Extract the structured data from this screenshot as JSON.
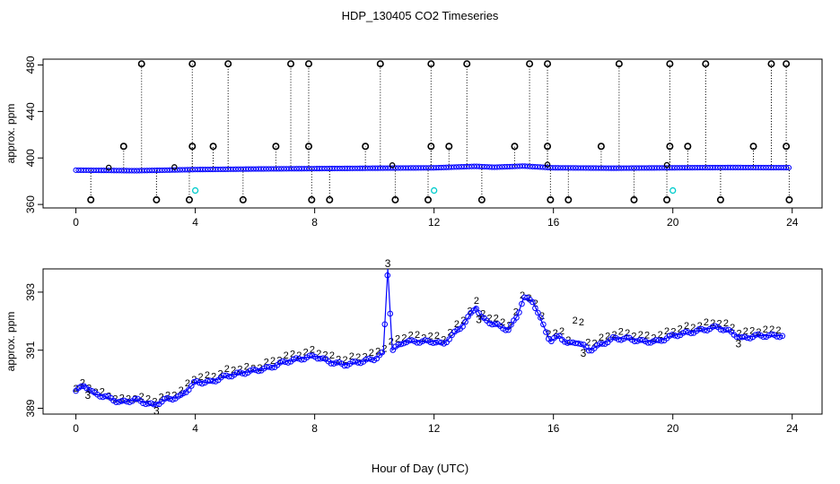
{
  "title": "HDP_130405  CO2 Timeseries",
  "xlabel": "Hour of Day (UTC)",
  "colors": {
    "axis": "#000000",
    "series_blue": "#0000ff",
    "series_green": "#00cc00",
    "marker_cyan": "#00cccc",
    "outlier": "#000000"
  },
  "chart_data": [
    {
      "type": "scatter",
      "name": "top-panel",
      "ylabel": "approx. ppm",
      "xlim": [
        -1.1,
        25
      ],
      "ylim": [
        357,
        485
      ],
      "xticks": [
        0,
        4,
        8,
        12,
        16,
        20,
        24
      ],
      "yticks": [
        360,
        400,
        440,
        480
      ],
      "baseline": [
        [
          0,
          389.5
        ],
        [
          2,
          389
        ],
        [
          4,
          390
        ],
        [
          6,
          390.5
        ],
        [
          8,
          390.8
        ],
        [
          10,
          391.2
        ],
        [
          12,
          391.5
        ],
        [
          13.4,
          392.8
        ],
        [
          14,
          392
        ],
        [
          15,
          393
        ],
        [
          15.8,
          391.8
        ],
        [
          16,
          391.5
        ],
        [
          18,
          391.2
        ],
        [
          20,
          391.5
        ],
        [
          22,
          391.8
        ],
        [
          24,
          391.6
        ]
      ],
      "outliers_high": [
        2.2,
        3.9,
        5.1,
        7.2,
        7.8,
        10.2,
        11.9,
        13.1,
        15.2,
        15.8,
        18.2,
        19.9,
        21.1,
        23.3,
        23.8
      ],
      "outliers_high_value": 481,
      "outliers_mid": [
        1.6,
        3.9,
        4.6,
        6.7,
        7.8,
        9.7,
        11.9,
        12.5,
        14.7,
        15.8,
        17.6,
        19.9,
        20.5,
        22.7,
        23.8
      ],
      "outliers_mid_value": 410,
      "outliers_low": [
        0.5,
        2.7,
        3.8,
        5.6,
        7.9,
        8.5,
        10.7,
        11.8,
        13.6,
        15.9,
        16.5,
        18.7,
        19.8,
        21.6,
        23.9
      ],
      "outliers_low_value": 364,
      "small_circles": [
        1.1,
        3.3,
        10.6,
        15.8,
        19.8
      ],
      "cyan_points": [
        [
          4.0,
          372
        ],
        [
          12.0,
          372
        ],
        [
          20.0,
          372
        ]
      ]
    },
    {
      "type": "line",
      "name": "bottom-panel",
      "ylabel": "approx. ppm",
      "xlim": [
        -1.1,
        25
      ],
      "ylim": [
        388.8,
        393.8
      ],
      "xticks": [
        0,
        4,
        8,
        12,
        16,
        20,
        24
      ],
      "yticks": [
        389,
        391,
        393
      ],
      "series": [
        {
          "name": "3",
          "color": "#0000ff",
          "points": [
            [
              0,
              389.6
            ],
            [
              0.3,
              389.8
            ],
            [
              0.6,
              389.5
            ],
            [
              1,
              389.4
            ],
            [
              1.5,
              389.2
            ],
            [
              2,
              389.3
            ],
            [
              2.6,
              389.1
            ],
            [
              3,
              389.3
            ],
            [
              3.5,
              389.4
            ],
            [
              4,
              389.9
            ],
            [
              4.5,
              389.9
            ],
            [
              5,
              390.1
            ],
            [
              5.5,
              390.2
            ],
            [
              6,
              390.3
            ],
            [
              6.5,
              390.4
            ],
            [
              7,
              390.6
            ],
            [
              7.5,
              390.7
            ],
            [
              8,
              390.8
            ],
            [
              8.5,
              390.6
            ],
            [
              9,
              390.5
            ],
            [
              9.5,
              390.6
            ],
            [
              10,
              390.7
            ],
            [
              10.3,
              390.9
            ],
            [
              10.45,
              393.8
            ],
            [
              10.6,
              391.0
            ],
            [
              11,
              391.3
            ],
            [
              11.5,
              391.3
            ],
            [
              12,
              391.3
            ],
            [
              12.3,
              391.2
            ],
            [
              12.6,
              391.5
            ],
            [
              13,
              391.9
            ],
            [
              13.4,
              392.5
            ],
            [
              13.6,
              392.1
            ],
            [
              14,
              391.9
            ],
            [
              14.5,
              391.7
            ],
            [
              14.8,
              392.2
            ],
            [
              15,
              392.8
            ],
            [
              15.3,
              392.7
            ],
            [
              15.6,
              392.0
            ],
            [
              15.9,
              391.3
            ],
            [
              16.2,
              391.5
            ],
            [
              16.5,
              391.2
            ],
            [
              16.8,
              391.3
            ],
            [
              17.2,
              391.0
            ],
            [
              17.6,
              391.2
            ],
            [
              18,
              391.4
            ],
            [
              18.5,
              391.4
            ],
            [
              19,
              391.3
            ],
            [
              19.5,
              391.3
            ],
            [
              20,
              391.5
            ],
            [
              20.5,
              391.6
            ],
            [
              21,
              391.7
            ],
            [
              21.5,
              391.8
            ],
            [
              22,
              391.6
            ],
            [
              22.3,
              391.4
            ],
            [
              22.8,
              391.5
            ],
            [
              23.3,
              391.5
            ],
            [
              23.7,
              391.5
            ]
          ]
        },
        {
          "name": "2",
          "color": "#00cc00",
          "points": [
            [
              0,
              389.7
            ],
            [
              0.3,
              389.9
            ],
            [
              0.6,
              389.6
            ],
            [
              1,
              389.5
            ],
            [
              1.5,
              389.3
            ],
            [
              2,
              389.4
            ],
            [
              2.6,
              389.3
            ],
            [
              3,
              389.4
            ],
            [
              3.5,
              389.6
            ],
            [
              4,
              390.1
            ],
            [
              4.5,
              390.1
            ],
            [
              5,
              390.3
            ],
            [
              5.5,
              390.4
            ],
            [
              6,
              390.4
            ],
            [
              6.5,
              390.6
            ],
            [
              7,
              390.8
            ],
            [
              7.5,
              390.9
            ],
            [
              8,
              391.0
            ],
            [
              8.5,
              390.8
            ],
            [
              9,
              390.7
            ],
            [
              9.5,
              390.8
            ],
            [
              10,
              390.9
            ],
            [
              10.3,
              391.1
            ],
            [
              10.6,
              391.3
            ],
            [
              11,
              391.5
            ],
            [
              11.5,
              391.5
            ],
            [
              12,
              391.5
            ],
            [
              12.3,
              391.4
            ],
            [
              12.6,
              391.7
            ],
            [
              13,
              392.1
            ],
            [
              13.4,
              392.7
            ],
            [
              13.6,
              392.3
            ],
            [
              14,
              392.1
            ],
            [
              14.5,
              391.9
            ],
            [
              14.8,
              392.4
            ],
            [
              15,
              393.0
            ],
            [
              15.3,
              392.8
            ],
            [
              15.6,
              392.2
            ],
            [
              15.9,
              391.5
            ],
            [
              16.2,
              391.7
            ],
            [
              16.5,
              391.4
            ],
            [
              16.8,
              392.3
            ],
            [
              17.2,
              391.2
            ],
            [
              17.6,
              391.4
            ],
            [
              18,
              391.6
            ],
            [
              18.5,
              391.6
            ],
            [
              19,
              391.5
            ],
            [
              19.5,
              391.5
            ],
            [
              20,
              391.7
            ],
            [
              20.5,
              391.8
            ],
            [
              21,
              391.9
            ],
            [
              21.5,
              392.0
            ],
            [
              22,
              391.8
            ],
            [
              22.3,
              391.6
            ],
            [
              22.8,
              391.7
            ],
            [
              23.3,
              391.7
            ],
            [
              23.7,
              391.8
            ]
          ]
        }
      ]
    }
  ]
}
